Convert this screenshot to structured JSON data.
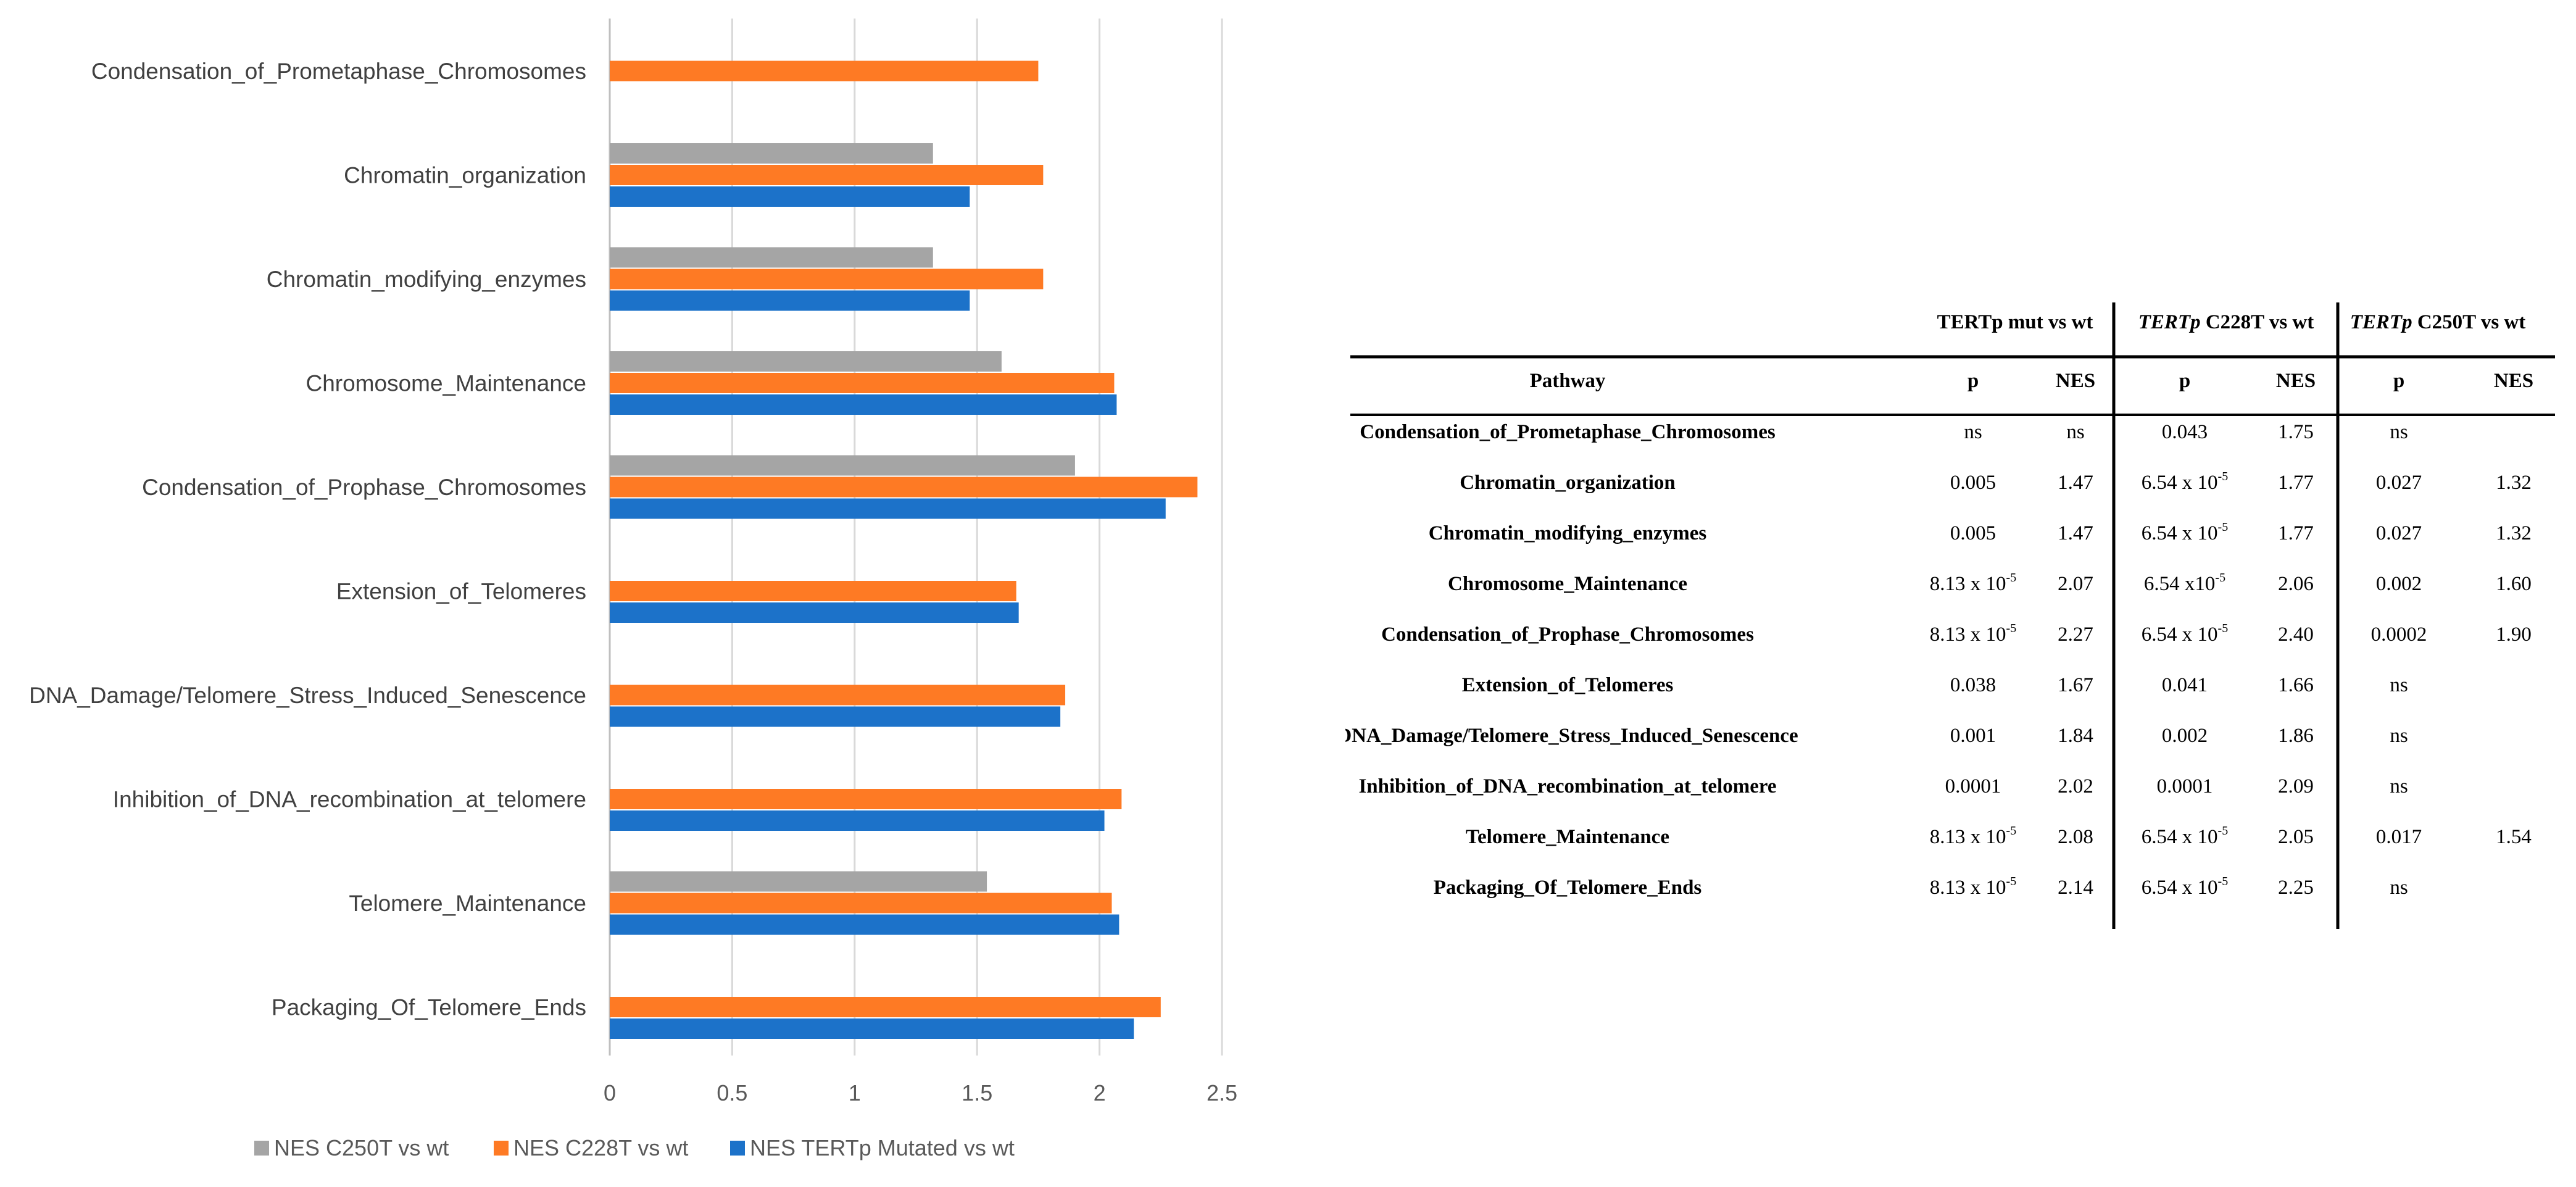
{
  "chart_data": {
    "type": "bar",
    "orientation": "horizontal",
    "title": "",
    "xlabel": "",
    "ylabel": "",
    "xlim": [
      0,
      2.5
    ],
    "x_ticks": [
      "0",
      "0.5",
      "1",
      "1.5",
      "2",
      "2.5"
    ],
    "x_tick_values": [
      0,
      0.5,
      1,
      1.5,
      2,
      2.5
    ],
    "grid": true,
    "legend_position": "bottom",
    "categories": [
      "Condensation_of_Prometaphase_Chromosomes",
      "Chromatin_organization",
      "Chromatin_modifying_enzymes",
      "Chromosome_Maintenance",
      "Condensation_of_Prophase_Chromosomes",
      "Extension_of_Telomeres",
      "DNA_Damage/Telomere_Stress_Induced_Senescence",
      "Inhibition_of_DNA_recombination_at_telomere",
      "Telomere_Maintenance",
      "Packaging_Of_Telomere_Ends"
    ],
    "series": [
      {
        "name": "NES C250T vs wt",
        "color": "#a5a5a5",
        "values": [
          null,
          1.32,
          1.32,
          1.6,
          1.9,
          null,
          null,
          null,
          1.54,
          null
        ]
      },
      {
        "name": "NES C228T vs wt",
        "color": "#fe7a24",
        "values": [
          1.75,
          1.77,
          1.77,
          2.06,
          2.4,
          1.66,
          1.86,
          2.09,
          2.05,
          2.25
        ]
      },
      {
        "name": "NES TERTp Mutated vs wt",
        "color": "#1c72c9",
        "values": [
          null,
          1.47,
          1.47,
          2.07,
          2.27,
          1.67,
          1.84,
          2.02,
          2.08,
          2.14
        ]
      }
    ]
  },
  "table": {
    "group_headers": [
      {
        "prefix": "",
        "emph": "",
        "text": "TERTp mut vs wt"
      },
      {
        "prefix": "",
        "emph": "TERTp",
        "text": " C228T vs wt"
      },
      {
        "prefix": "",
        "emph": "TERTp",
        "text": " C250T vs wt"
      }
    ],
    "columns": [
      "Pathway",
      "p",
      "NES",
      "p",
      "NES",
      "p",
      "NES"
    ],
    "rows": [
      [
        "Condensation_of_Prometaphase_Chromosomes",
        "ns",
        "ns",
        "0.043",
        "1.75",
        "ns",
        ""
      ],
      [
        "Chromatin_organization",
        "0.005",
        "1.47",
        "6.54 x 10",
        "1.77",
        "0.027",
        "1.32"
      ],
      [
        "Chromatin_modifying_enzymes",
        "0.005",
        "1.47",
        "6.54 x 10",
        "1.77",
        "0.027",
        "1.32"
      ],
      [
        "Chromosome_Maintenance",
        "8.13 x 10",
        "2.07",
        "6.54 x10",
        "2.06",
        "0.002",
        "1.60"
      ],
      [
        "Condensation_of_Prophase_Chromosomes",
        "8.13 x 10",
        "2.27",
        "6.54 x 10",
        "2.40",
        "0.0002",
        "1.90"
      ],
      [
        "Extension_of_Telomeres",
        "0.038",
        "1.67",
        "0.041",
        "1.66",
        "ns",
        ""
      ],
      [
        "DNA_Damage/Telomere_Stress_Induced_Senescence",
        "0.001",
        "1.84",
        "0.002",
        "1.86",
        "ns",
        ""
      ],
      [
        "Inhibition_of_DNA_recombination_at_telomere",
        "0.0001",
        "2.02",
        "0.0001",
        "2.09",
        "ns",
        ""
      ],
      [
        "Telomere_Maintenance",
        "8.13 x 10",
        "2.08",
        "6.54 x 10",
        "2.05",
        "0.017",
        "1.54"
      ],
      [
        "Packaging_Of_Telomere_Ends",
        "8.13 x 10",
        "2.14",
        "6.54 x 10",
        "2.25",
        "ns",
        ""
      ]
    ],
    "exponent": "-5"
  }
}
